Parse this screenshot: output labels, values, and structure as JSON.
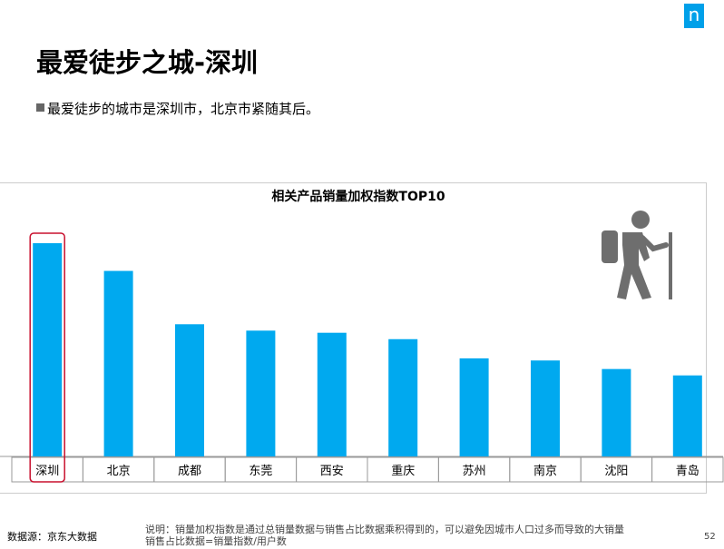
{
  "logo": {
    "letter": "n",
    "color": "#00a0e9"
  },
  "header": {
    "title": "最爱徒步之城-深圳",
    "bullet": "最爱徒步的城市是深圳市，北京市紧随其后。"
  },
  "chart_data": {
    "type": "bar",
    "title": "相关产品销量加权指数TOP10",
    "categories": [
      "深圳",
      "北京",
      "成都",
      "东莞",
      "西安",
      "重庆",
      "苏州",
      "南京",
      "沈阳",
      "青岛"
    ],
    "values": [
      100,
      87,
      62,
      59,
      58,
      55,
      46,
      45,
      41,
      38
    ],
    "ylim": [
      0,
      100
    ],
    "bar_color": "#00a9ef",
    "highlight_category": "深圳",
    "highlight_color": "#c8102e",
    "grid": false,
    "legend": "none"
  },
  "decor": {
    "hiker_icon": "hiker-icon",
    "hiker_color": "#6e6e6e"
  },
  "footer": {
    "source": "数据源：京东大数据",
    "note_line1": "说明：销量加权指数是通过总销量数据与销售占比数据乘积得到的，可以避免因城市人口过多而导致的大销量",
    "note_line2": "销售占比数据=销量指数/用户数",
    "page_number": "52"
  }
}
